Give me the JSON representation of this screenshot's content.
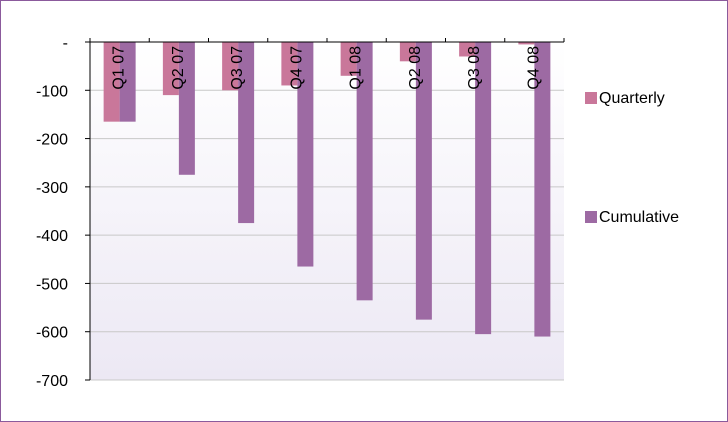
{
  "chart_data": {
    "type": "bar",
    "categories": [
      "Q1 07",
      "Q2 07",
      "Q3 07",
      "Q4 07",
      "Q1 08",
      "Q2 08",
      "Q3 08",
      "Q4 08"
    ],
    "series": [
      {
        "name": "Quarterly",
        "values": [
          -165,
          -110,
          -100,
          -90,
          -70,
          -40,
          -30,
          -5
        ],
        "color": "#c9779a"
      },
      {
        "name": "Cumulative",
        "values": [
          -165,
          -275,
          -375,
          -465,
          -535,
          -575,
          -605,
          -610
        ],
        "color": "#9d6aa3"
      }
    ],
    "y_ticks": [
      {
        "value": 0,
        "label": "-"
      },
      {
        "value": -100,
        "label": "-100"
      },
      {
        "value": -200,
        "label": "-200"
      },
      {
        "value": -300,
        "label": "-300"
      },
      {
        "value": -400,
        "label": "-400"
      },
      {
        "value": -500,
        "label": "-500"
      },
      {
        "value": -600,
        "label": "-600"
      },
      {
        "value": -700,
        "label": "-700"
      }
    ],
    "ylim": [
      -700,
      0
    ],
    "grid": true,
    "legend_position": "right",
    "title": "",
    "xlabel": "",
    "ylabel": "",
    "colors": {
      "border": "#8b5a9c",
      "plot_bg_top": "#ffffff",
      "plot_bg_bottom": "#ece8f4",
      "gridline": "#c8c8c8"
    }
  }
}
